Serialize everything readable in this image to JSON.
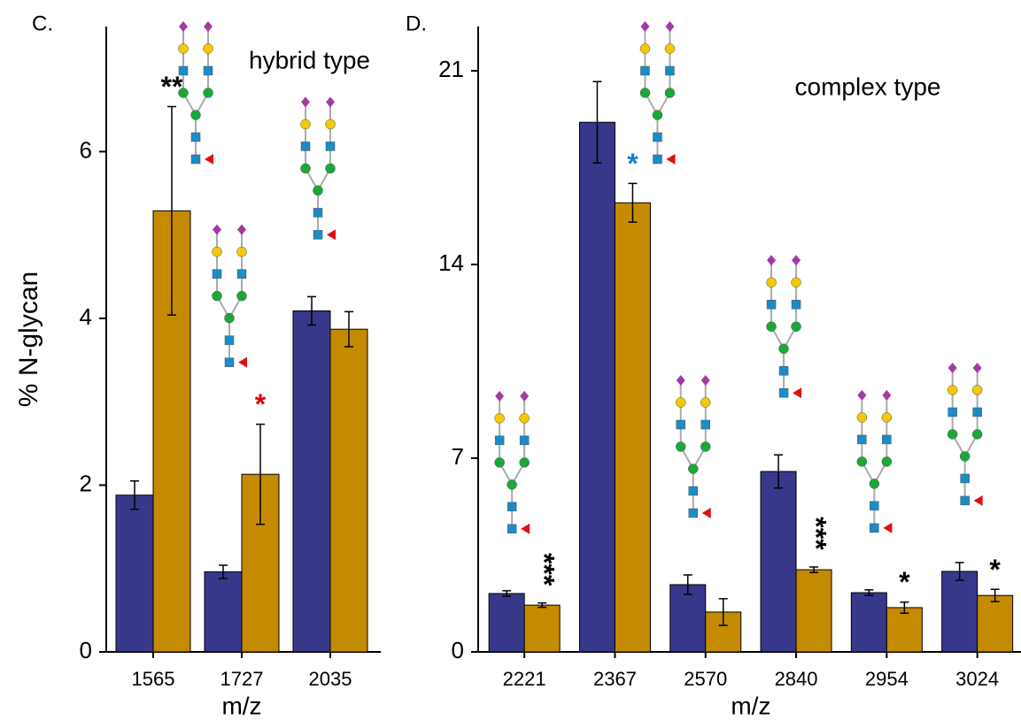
{
  "chart_data": [
    {
      "type": "bar",
      "panel_label": "C.",
      "title": "hybrid type",
      "y_label": "% N-glycan",
      "x_label": "m/z",
      "categories": [
        "1565",
        "1727",
        "2035"
      ],
      "series": [
        {
          "color": "#38388a",
          "values": [
            1.88,
            0.96,
            4.09
          ],
          "errors": [
            0.17,
            0.08,
            0.17
          ]
        },
        {
          "color": "#c48a00",
          "values": [
            5.29,
            2.13,
            3.87
          ],
          "errors": [
            1.25,
            0.6,
            0.21
          ]
        }
      ],
      "ylim": [
        0,
        7.5
      ],
      "yticks": [
        0,
        2,
        4,
        6
      ],
      "annotations": [
        {
          "text": "**",
          "series": 1,
          "category": 0,
          "color": "#000000",
          "vertical": false
        },
        {
          "text": "*",
          "series": 1,
          "category": 1,
          "color": "#e00000",
          "vertical": false
        }
      ]
    },
    {
      "type": "bar",
      "panel_label": "D.",
      "title": "complex type",
      "x_label": "m/z",
      "categories": [
        "2221",
        "2367",
        "2570",
        "2840",
        "2954",
        "3024"
      ],
      "series": [
        {
          "color": "#38388a",
          "values": [
            2.11,
            19.14,
            2.43,
            6.52,
            2.14,
            2.91
          ],
          "errors": [
            0.1,
            1.47,
            0.35,
            0.6,
            0.1,
            0.32
          ]
        },
        {
          "color": "#c48a00",
          "values": [
            1.69,
            16.23,
            1.44,
            2.97,
            1.6,
            2.04
          ],
          "errors": [
            0.08,
            0.7,
            0.48,
            0.1,
            0.2,
            0.22
          ]
        }
      ],
      "ylim": [
        0,
        22.6
      ],
      "yticks": [
        0,
        7,
        14,
        21
      ],
      "annotations": [
        {
          "text": "***",
          "series": 1,
          "category": 0,
          "color": "#000000",
          "vertical": true
        },
        {
          "text": "*",
          "series": 1,
          "category": 1,
          "color": "#1a7fc8",
          "vertical": false
        },
        {
          "text": "***",
          "series": 1,
          "category": 3,
          "color": "#000000",
          "vertical": true
        },
        {
          "text": "*",
          "series": 1,
          "category": 4,
          "color": "#000000",
          "vertical": false
        },
        {
          "text": "*",
          "series": 1,
          "category": 5,
          "color": "#000000",
          "vertical": false
        }
      ]
    }
  ]
}
